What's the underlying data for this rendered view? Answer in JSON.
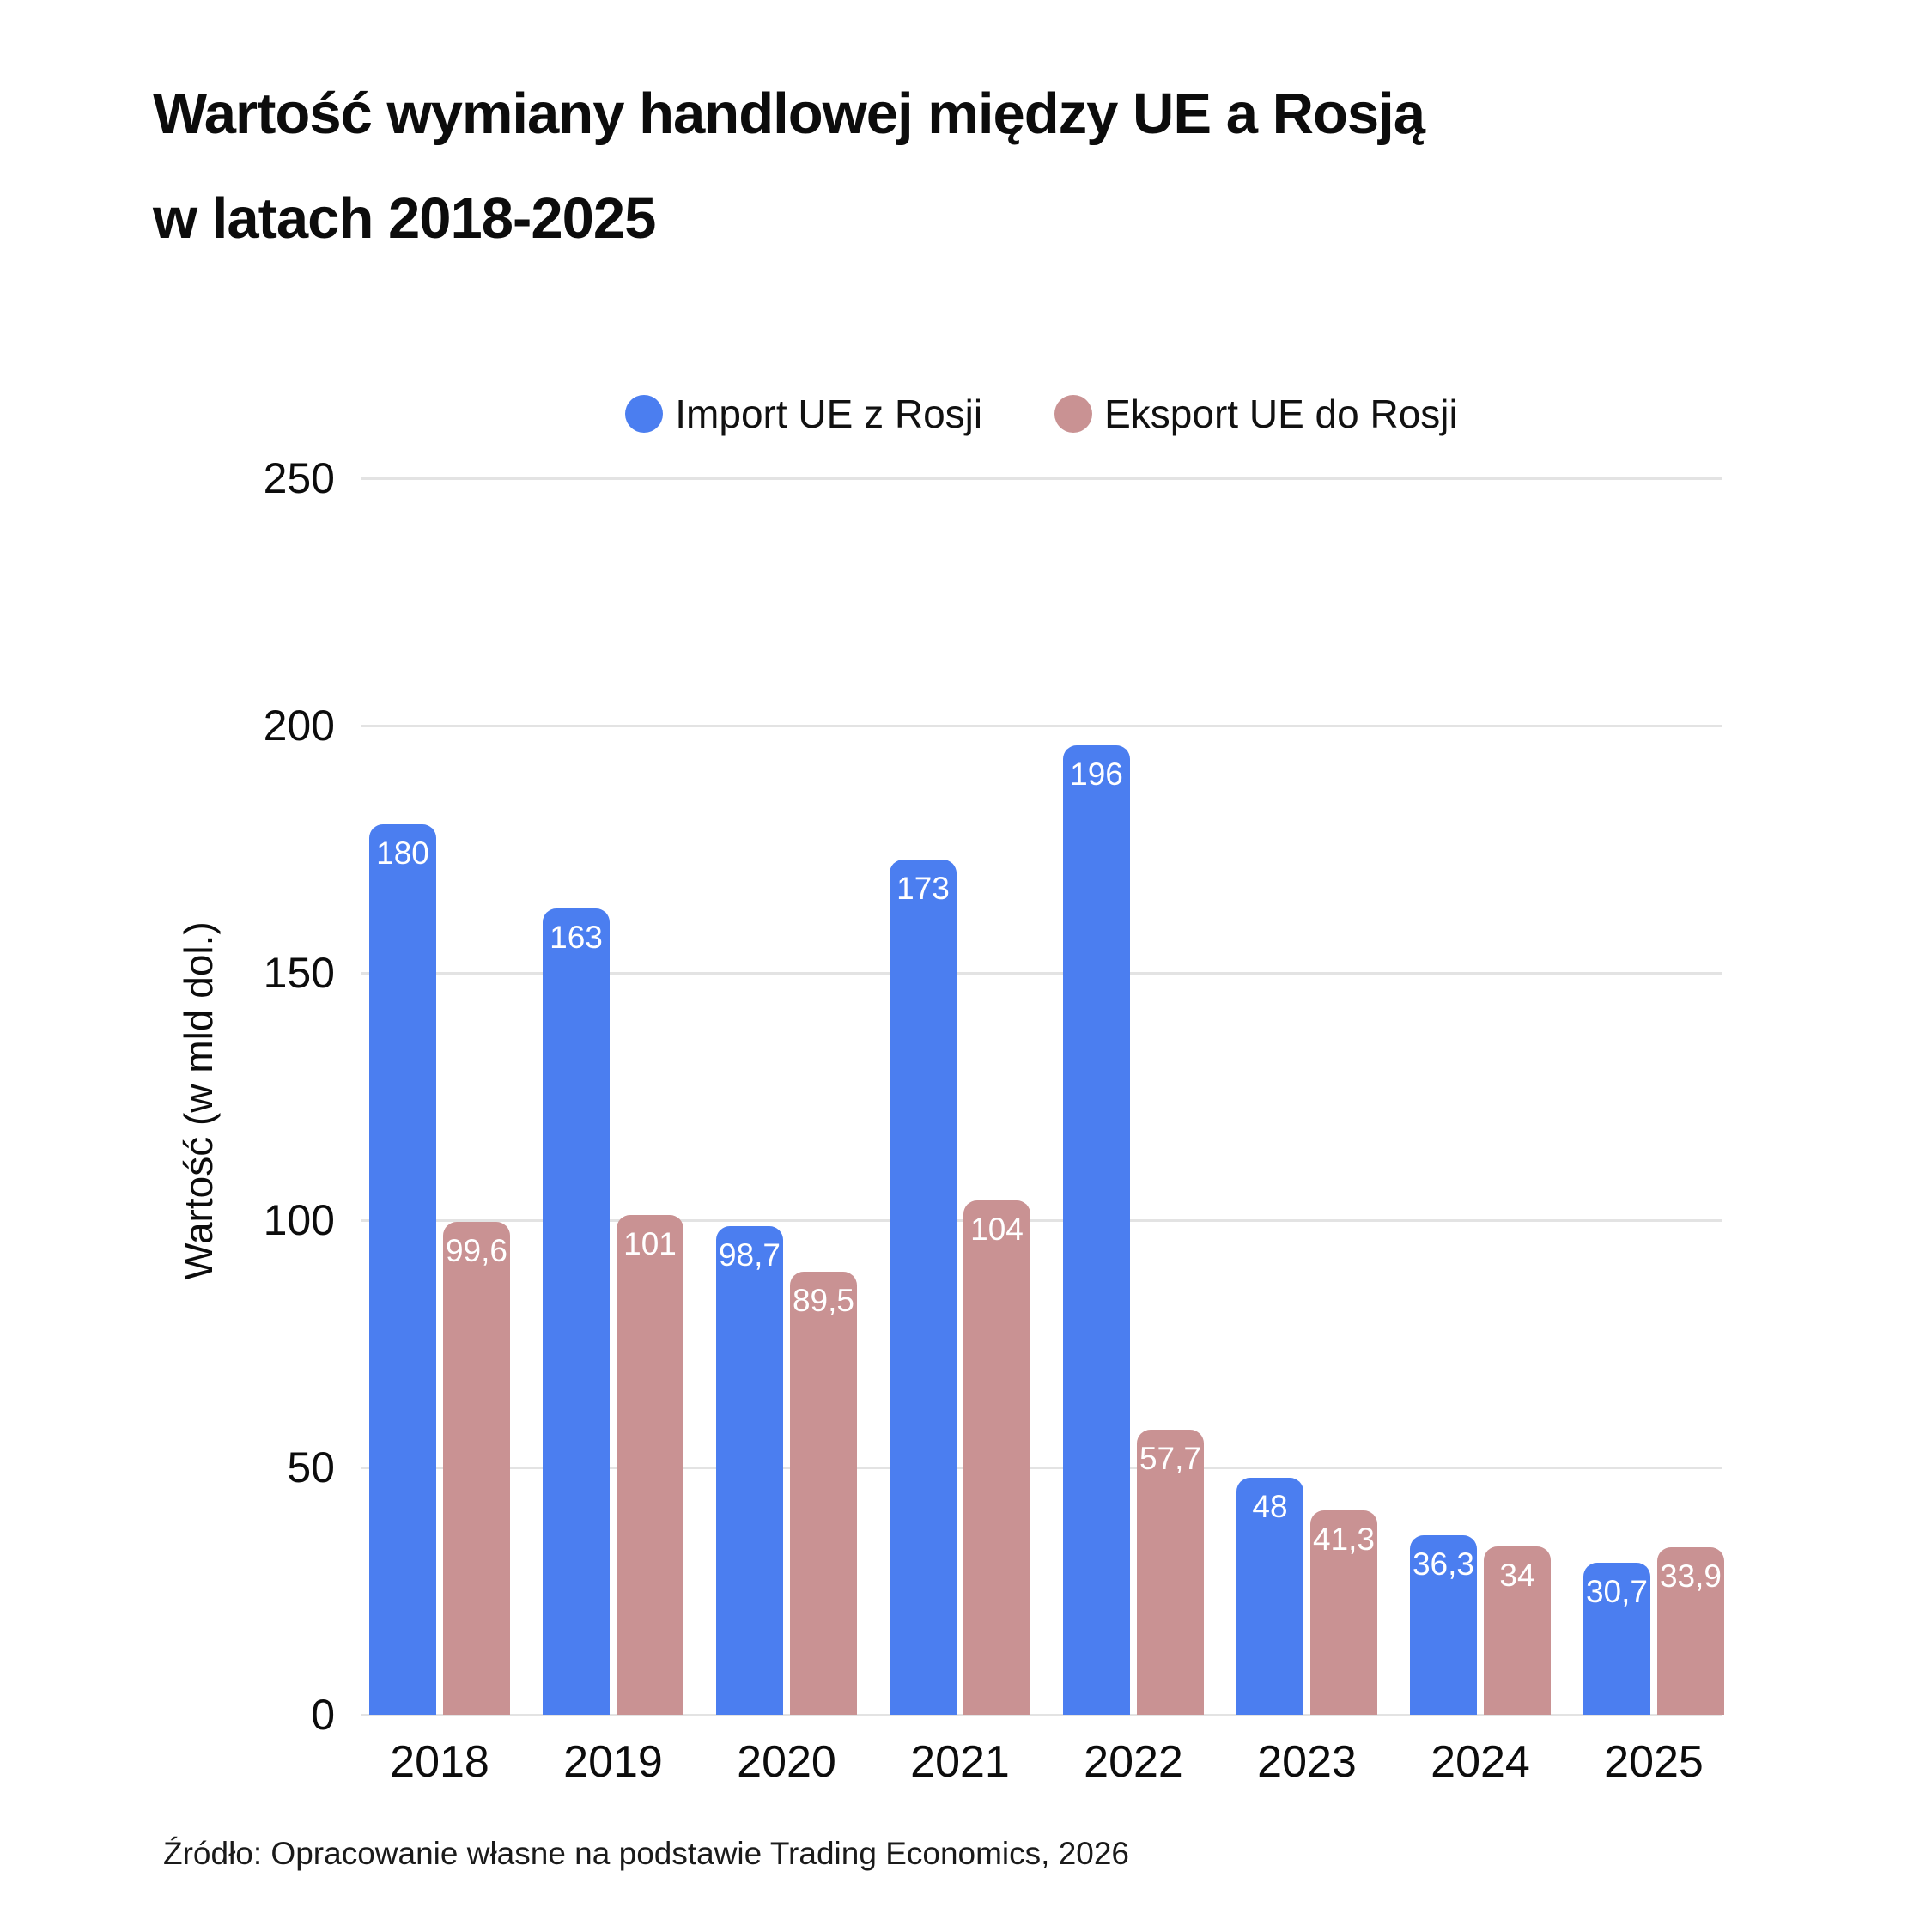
{
  "title": {
    "line1": "Wartość wymiany handlowej między UE a Rosją",
    "line2": "w latach 2018-2025"
  },
  "legend": [
    {
      "label": "Import UE z Rosji",
      "color": "#4B7EF0"
    },
    {
      "label": "Eksport UE do Rosji",
      "color": "#C99293"
    }
  ],
  "y_axis": {
    "title": "Wartość (w mld dol.)",
    "ticks": [
      0,
      50,
      100,
      150,
      200,
      250
    ]
  },
  "source": "Źródło: Opracowanie własne na podstawie Trading Economics, 2026",
  "colors": {
    "grid": "#E3E3E3",
    "background": "#FFFFFF",
    "bar_label": "#FFFFFF",
    "text": "#0C0C0C"
  },
  "chart_data": {
    "type": "bar",
    "title": "Wartość wymiany handlowej między UE a Rosją w latach 2018-2025",
    "categories": [
      "2018",
      "2019",
      "2020",
      "2021",
      "2022",
      "2023",
      "2024",
      "2025"
    ],
    "series": [
      {
        "name": "Import UE z Rosji",
        "color": "#4B7EF0",
        "values": [
          180,
          163,
          98.7,
          173,
          196,
          48,
          36.3,
          30.7
        ],
        "labels": [
          "180",
          "163",
          "98,7",
          "173",
          "196",
          "48",
          "36,3",
          "30,7"
        ]
      },
      {
        "name": "Eksport UE do Rosji",
        "color": "#C99293",
        "values": [
          99.6,
          101,
          89.5,
          104,
          57.7,
          41.3,
          34,
          33.9
        ],
        "labels": [
          "99,6",
          "101",
          "89,5",
          "104",
          "57,7",
          "41,3",
          "34",
          "33,9"
        ]
      }
    ],
    "ylabel": "Wartość (w mld dol.)",
    "xlabel": "",
    "ylim": [
      0,
      250
    ],
    "grid": true,
    "legend_position": "top-center"
  }
}
